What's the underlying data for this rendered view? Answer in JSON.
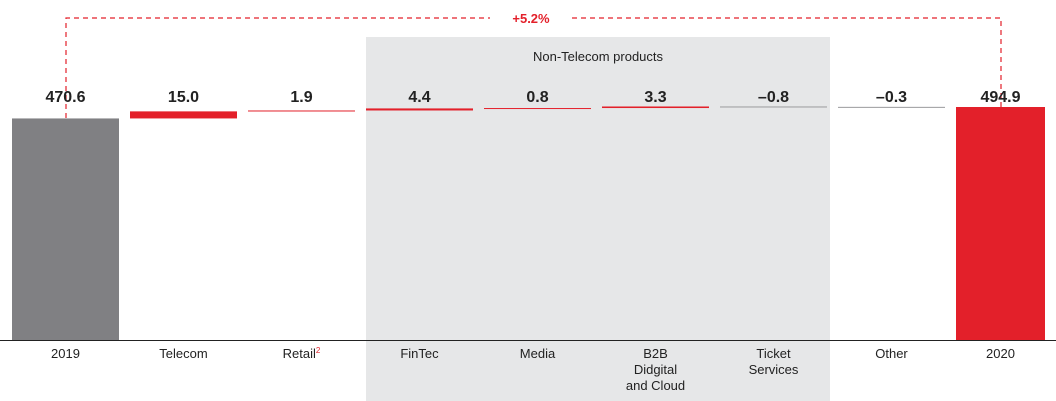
{
  "chart_data": {
    "type": "waterfall",
    "annotation": "+5.2%",
    "group_label": "Non-Telecom products",
    "categories": [
      "2019",
      "Telecom",
      "Retail",
      "FinTec",
      "Media",
      "B2B\nDidgital\nand Cloud",
      "Ticket\nServices",
      "Other",
      "2020"
    ],
    "category_notes": [
      null,
      null,
      "2",
      null,
      null,
      null,
      null,
      null,
      null
    ],
    "measure": [
      "absolute",
      "relative",
      "relative",
      "relative",
      "relative",
      "relative",
      "relative",
      "relative",
      "absolute"
    ],
    "values": [
      470.6,
      15.0,
      1.9,
      4.4,
      0.8,
      3.3,
      -0.8,
      -0.3,
      494.9
    ],
    "value_labels": [
      "470.6",
      "15.0",
      "1.9",
      "4.4",
      "0.8",
      "3.3",
      "–0.8",
      "–0.3",
      "494.9"
    ],
    "colors": {
      "start": "#808083",
      "end": "#e3202a",
      "increase": "#e3202a",
      "decrease": "#9a9a9c"
    },
    "ylim": [
      0,
      500
    ]
  }
}
